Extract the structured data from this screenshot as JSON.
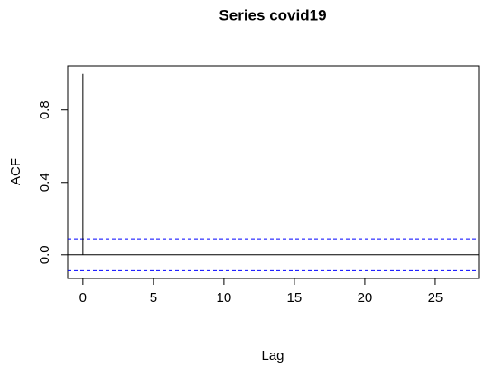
{
  "chart_data": {
    "type": "acf",
    "title": "Series  covid19",
    "x_label": "Lag",
    "y_label": "ACF",
    "x": [
      0,
      1,
      2,
      3,
      4,
      5,
      6,
      7,
      8,
      9,
      10,
      11,
      12,
      13,
      14,
      15,
      16,
      17,
      18,
      19,
      20,
      21,
      22,
      23,
      24,
      25,
      26,
      27
    ],
    "values": [
      1,
      0,
      0,
      0,
      0,
      0,
      0,
      0,
      0,
      0,
      0,
      0,
      0,
      0,
      0,
      0,
      0,
      0,
      0,
      0,
      0,
      0,
      0,
      0,
      0,
      0,
      0,
      0
    ],
    "color": "#000000",
    "ci": 0.088,
    "ci_color": "#0000ff",
    "xlim": [
      -1.08,
      28.08
    ],
    "ylim": [
      -0.131,
      1.0435
    ],
    "xticks": [
      0,
      5,
      10,
      15,
      20,
      25
    ],
    "yticks": [
      {
        "value": 0,
        "label": "0.0"
      },
      {
        "value": 0.4,
        "label": "0.4"
      },
      {
        "value": 0.8,
        "label": "0.8"
      }
    ]
  }
}
